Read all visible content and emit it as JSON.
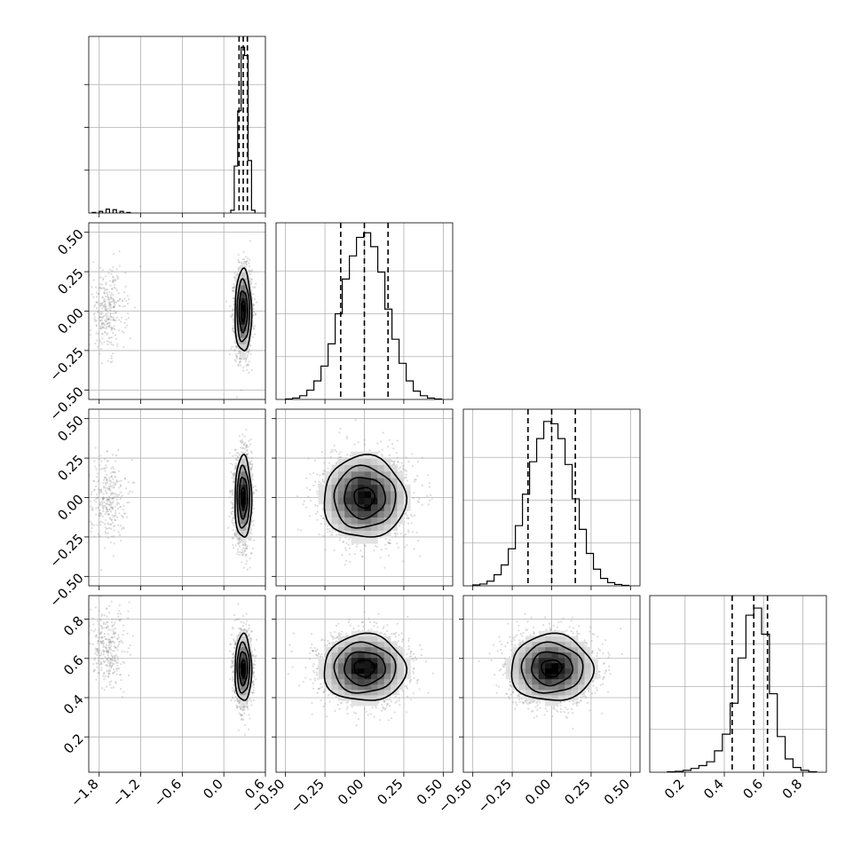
{
  "chart_data": {
    "type": "corner",
    "n_params": 4,
    "grid": true,
    "colors": {
      "ink": "#000000",
      "grid": "#b0b0b0",
      "scatter": "#9a9a9a"
    },
    "axes": [
      {
        "range": [
          -1.95,
          0.6
        ],
        "ticks": [
          -1.8,
          -1.2,
          -0.6,
          0.0,
          0.6
        ],
        "tick_labels": [
          "−1.8",
          "−1.2",
          "−0.6",
          "0.0",
          "0.6"
        ],
        "quantiles": [
          0.22,
          0.28,
          0.34
        ],
        "hist": {
          "bins": [
            [
              -1.9,
              1
            ],
            [
              -1.8,
              3
            ],
            [
              -1.7,
              7
            ],
            [
              -1.6,
              6
            ],
            [
              -1.5,
              3
            ],
            [
              -1.4,
              1
            ],
            [
              0.1,
              5
            ],
            [
              0.15,
              85
            ],
            [
              0.2,
              185
            ],
            [
              0.25,
              300
            ],
            [
              0.3,
              285
            ],
            [
              0.35,
              95
            ],
            [
              0.4,
              5
            ]
          ],
          "bin_width": 0.05,
          "ymax": 310
        }
      },
      {
        "range": [
          -0.56,
          0.56
        ],
        "ticks": [
          -0.5,
          -0.25,
          0.0,
          0.25,
          0.5
        ],
        "tick_labels": [
          "−0.50",
          "−0.25",
          "0.00",
          "0.25",
          "0.50"
        ],
        "quantiles": [
          -0.15,
          0.0,
          0.15
        ],
        "hist": {
          "bins": [
            [
              -0.5,
              1
            ],
            [
              -0.455,
              3
            ],
            [
              -0.41,
              8
            ],
            [
              -0.365,
              20
            ],
            [
              -0.32,
              40
            ],
            [
              -0.275,
              72
            ],
            [
              -0.23,
              120
            ],
            [
              -0.185,
              185
            ],
            [
              -0.14,
              260
            ],
            [
              -0.095,
              310
            ],
            [
              -0.05,
              350
            ],
            [
              -0.005,
              360
            ],
            [
              0.04,
              330
            ],
            [
              0.085,
              275
            ],
            [
              0.13,
              195
            ],
            [
              0.175,
              130
            ],
            [
              0.22,
              78
            ],
            [
              0.265,
              40
            ],
            [
              0.31,
              18
            ],
            [
              0.355,
              8
            ],
            [
              0.4,
              3
            ],
            [
              0.445,
              1
            ]
          ],
          "bin_width": 0.045,
          "ymax": 370
        }
      },
      {
        "range": [
          -0.56,
          0.56
        ],
        "ticks": [
          -0.5,
          -0.25,
          0.0,
          0.25,
          0.5
        ],
        "tick_labels": [
          "−0.50",
          "−0.25",
          "0.00",
          "0.25",
          "0.50"
        ],
        "quantiles": [
          -0.15,
          0.0,
          0.15
        ],
        "hist": {
          "bins": [
            [
              -0.5,
              2
            ],
            [
              -0.455,
              4
            ],
            [
              -0.41,
              10
            ],
            [
              -0.365,
              24
            ],
            [
              -0.32,
              45
            ],
            [
              -0.275,
              80
            ],
            [
              -0.23,
              130
            ],
            [
              -0.185,
              198
            ],
            [
              -0.14,
              268
            ],
            [
              -0.095,
              318
            ],
            [
              -0.05,
              355
            ],
            [
              -0.005,
              350
            ],
            [
              0.04,
              318
            ],
            [
              0.085,
              262
            ],
            [
              0.13,
              188
            ],
            [
              0.175,
              122
            ],
            [
              0.22,
              70
            ],
            [
              0.265,
              36
            ],
            [
              0.31,
              16
            ],
            [
              0.355,
              7
            ],
            [
              0.4,
              3
            ],
            [
              0.445,
              1
            ]
          ],
          "bin_width": 0.045,
          "ymax": 370
        }
      },
      {
        "range": [
          0.02,
          0.92
        ],
        "ticks": [
          0.2,
          0.4,
          0.6,
          0.8
        ],
        "tick_labels": [
          "0.2",
          "0.4",
          "0.6",
          "0.8"
        ],
        "quantiles": [
          0.44,
          0.55,
          0.62
        ],
        "hist": {
          "bins": [
            [
              0.11,
              1
            ],
            [
              0.15,
              2
            ],
            [
              0.19,
              4
            ],
            [
              0.23,
              8
            ],
            [
              0.27,
              14
            ],
            [
              0.31,
              22
            ],
            [
              0.35,
              45
            ],
            [
              0.39,
              80
            ],
            [
              0.43,
              145
            ],
            [
              0.47,
              240
            ],
            [
              0.51,
              330
            ],
            [
              0.55,
              345
            ],
            [
              0.59,
              290
            ],
            [
              0.63,
              165
            ],
            [
              0.67,
              75
            ],
            [
              0.71,
              28
            ],
            [
              0.75,
              10
            ],
            [
              0.79,
              4
            ],
            [
              0.83,
              1
            ]
          ],
          "bin_width": 0.04,
          "ymax": 360
        }
      }
    ],
    "pairs": [
      {
        "row": 1,
        "col": 0,
        "modes": [
          {
            "mean": [
              0.28,
              0.0
            ],
            "sd": [
              0.06,
              0.13
            ],
            "weight": 0.88
          },
          {
            "mean": [
              -1.68,
              0.0
            ],
            "sd": [
              0.13,
              0.13
            ],
            "weight": 0.12
          }
        ]
      },
      {
        "row": 2,
        "col": 0,
        "modes": [
          {
            "mean": [
              0.28,
              0.0
            ],
            "sd": [
              0.06,
              0.13
            ],
            "weight": 0.88
          },
          {
            "mean": [
              -1.68,
              0.0
            ],
            "sd": [
              0.13,
              0.13
            ],
            "weight": 0.12
          }
        ]
      },
      {
        "row": 2,
        "col": 1,
        "modes": [
          {
            "mean": [
              0.0,
              0.0
            ],
            "sd": [
              0.13,
              0.13
            ],
            "weight": 1.0
          }
        ]
      },
      {
        "row": 3,
        "col": 0,
        "modes": [
          {
            "mean": [
              0.28,
              0.55
            ],
            "sd": [
              0.06,
              0.085
            ],
            "weight": 0.88
          },
          {
            "mean": [
              -1.68,
              0.65
            ],
            "sd": [
              0.13,
              0.1
            ],
            "weight": 0.12
          }
        ]
      },
      {
        "row": 3,
        "col": 1,
        "modes": [
          {
            "mean": [
              0.0,
              0.55
            ],
            "sd": [
              0.13,
              0.085
            ],
            "weight": 1.0
          }
        ]
      },
      {
        "row": 3,
        "col": 2,
        "modes": [
          {
            "mean": [
              0.0,
              0.55
            ],
            "sd": [
              0.13,
              0.085
            ],
            "weight": 1.0
          }
        ]
      }
    ]
  }
}
